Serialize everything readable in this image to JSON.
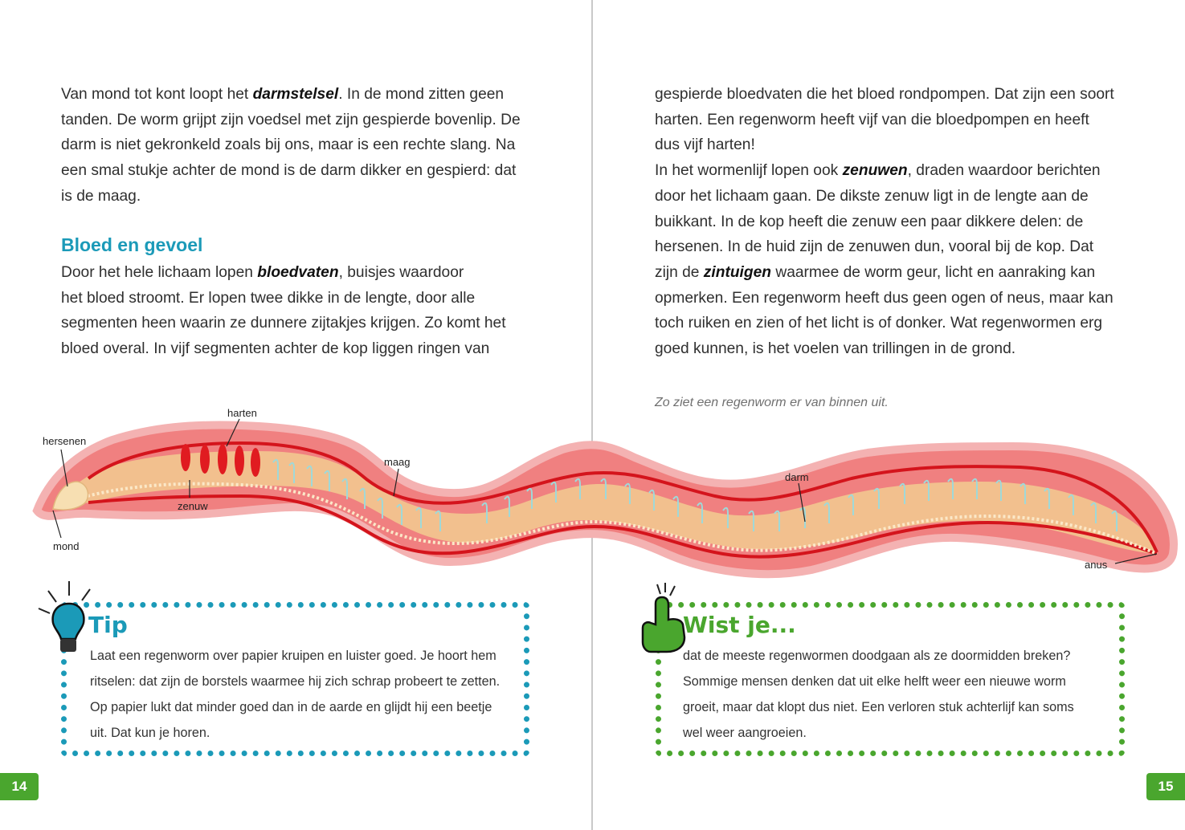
{
  "left_page": {
    "paragraph_1_lines": [
      [
        "Van mond tot kont loopt het ",
        "darmstelsel",
        ". In de mond zitten geen"
      ],
      [
        "tanden. De worm grijpt zijn voedsel met zijn gespierde bovenlip. De"
      ],
      [
        "darm is niet gekronkeld zoals bij ons, maar is een rechte slang. Na"
      ],
      [
        "een smal stukje achter de mond is de darm dikker en gespierd: dat"
      ],
      [
        "is de maag."
      ]
    ],
    "heading": "Bloed en gevoel",
    "paragraph_2_lines": [
      [
        "Door het hele lichaam lopen ",
        "bloedvaten",
        ", buisjes waardoor"
      ],
      [
        "het bloed stroomt. Er lopen twee dikke in de lengte, door alle"
      ],
      [
        "segmenten heen waarin ze dunnere zijtakjes krijgen. Zo komt het"
      ],
      [
        "bloed overal. In vijf segmenten achter de kop liggen ringen van"
      ]
    ],
    "tip": {
      "title": "Tip",
      "lines": [
        "Laat een regenworm over papier kruipen en luister goed. Je hoort hem",
        "ritselen: dat zijn de borstels waarmee hij zich schrap probeert te zetten.",
        "Op papier lukt dat minder goed dan in de aarde en glijdt hij een beetje",
        "uit. Dat kun je horen."
      ],
      "icon": "lightbulb-icon"
    },
    "page_number": "14"
  },
  "right_page": {
    "paragraph_lines": [
      [
        "gespierde bloedvaten die het bloed rondpompen. Dat zijn een soort"
      ],
      [
        "harten. Een regenworm heeft vijf van die bloedpompen en heeft"
      ],
      [
        "dus vijf harten!"
      ],
      [
        "In het wormenlijf lopen ook ",
        "zenuwen",
        ", draden waardoor berichten"
      ],
      [
        "door het lichaam gaan. De dikste zenuw ligt in de lengte aan de"
      ],
      [
        "buikkant. In de kop heeft die zenuw een paar dikkere delen: de"
      ],
      [
        "hersenen. In de huid zijn de zenuwen dun, vooral bij de kop. Dat"
      ],
      [
        "zijn de ",
        "zintuigen",
        " waarmee de worm geur, licht en aanraking kan"
      ],
      [
        "opmerken. Een regenworm heeft dus geen ogen of neus, maar kan"
      ],
      [
        "toch ruiken en zien of het licht is of donker. Wat regenwormen erg"
      ],
      [
        "goed kunnen, is het voelen van trillingen in de grond."
      ]
    ],
    "caption": "Zo ziet een regenworm er van binnen uit.",
    "wist_je": {
      "title": "Wist je...",
      "lines": [
        "dat de meeste regenwormen doodgaan als ze doormidden breken?",
        "Sommige mensen denken dat uit elke helft weer een nieuwe worm",
        "groeit, maar dat klopt dus niet. Een verloren stuk achterlijf kan soms",
        "wel weer aangroeien."
      ],
      "icon": "pointing-hand-icon"
    },
    "page_number": "15"
  },
  "worm_labels": {
    "hersenen": "hersenen",
    "harten": "harten",
    "maag": "maag",
    "zenuw": "zenuw",
    "mond": "mond",
    "darm": "darm",
    "anus": "anus"
  },
  "colors": {
    "accent_blue": "#1b9ab8",
    "accent_green": "#4aa62e",
    "worm_skin": "#f08080",
    "worm_gut": "#f2c08e",
    "blood_vessel": "#d4141c"
  }
}
